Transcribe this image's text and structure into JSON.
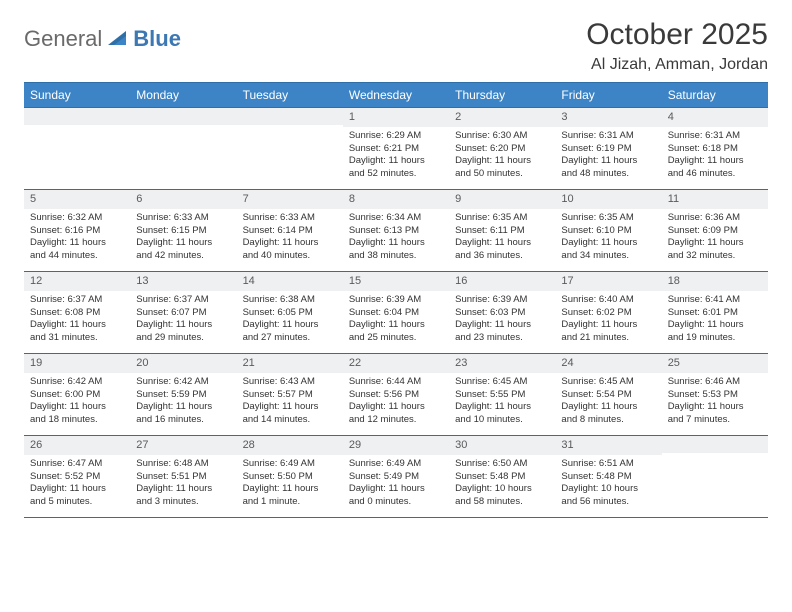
{
  "brand": {
    "part1": "General",
    "part2": "Blue"
  },
  "title": "October 2025",
  "location": "Al Jizah, Amman, Jordan",
  "colors": {
    "header_bg": "#3c84c6",
    "header_text": "#ffffff",
    "border": "#2f6fa8",
    "daynum_bg": "#eef0f2",
    "text": "#333333",
    "logo_gray": "#6a6a6a",
    "logo_blue": "#3d78b4"
  },
  "weekdays": [
    "Sunday",
    "Monday",
    "Tuesday",
    "Wednesday",
    "Thursday",
    "Friday",
    "Saturday"
  ],
  "layout": {
    "leading_blanks": 3,
    "trailing_blanks": 1,
    "weeks": 5
  },
  "days": [
    {
      "n": "1",
      "sr": "Sunrise: 6:29 AM",
      "ss": "Sunset: 6:21 PM",
      "dl": "Daylight: 11 hours and 52 minutes."
    },
    {
      "n": "2",
      "sr": "Sunrise: 6:30 AM",
      "ss": "Sunset: 6:20 PM",
      "dl": "Daylight: 11 hours and 50 minutes."
    },
    {
      "n": "3",
      "sr": "Sunrise: 6:31 AM",
      "ss": "Sunset: 6:19 PM",
      "dl": "Daylight: 11 hours and 48 minutes."
    },
    {
      "n": "4",
      "sr": "Sunrise: 6:31 AM",
      "ss": "Sunset: 6:18 PM",
      "dl": "Daylight: 11 hours and 46 minutes."
    },
    {
      "n": "5",
      "sr": "Sunrise: 6:32 AM",
      "ss": "Sunset: 6:16 PM",
      "dl": "Daylight: 11 hours and 44 minutes."
    },
    {
      "n": "6",
      "sr": "Sunrise: 6:33 AM",
      "ss": "Sunset: 6:15 PM",
      "dl": "Daylight: 11 hours and 42 minutes."
    },
    {
      "n": "7",
      "sr": "Sunrise: 6:33 AM",
      "ss": "Sunset: 6:14 PM",
      "dl": "Daylight: 11 hours and 40 minutes."
    },
    {
      "n": "8",
      "sr": "Sunrise: 6:34 AM",
      "ss": "Sunset: 6:13 PM",
      "dl": "Daylight: 11 hours and 38 minutes."
    },
    {
      "n": "9",
      "sr": "Sunrise: 6:35 AM",
      "ss": "Sunset: 6:11 PM",
      "dl": "Daylight: 11 hours and 36 minutes."
    },
    {
      "n": "10",
      "sr": "Sunrise: 6:35 AM",
      "ss": "Sunset: 6:10 PM",
      "dl": "Daylight: 11 hours and 34 minutes."
    },
    {
      "n": "11",
      "sr": "Sunrise: 6:36 AM",
      "ss": "Sunset: 6:09 PM",
      "dl": "Daylight: 11 hours and 32 minutes."
    },
    {
      "n": "12",
      "sr": "Sunrise: 6:37 AM",
      "ss": "Sunset: 6:08 PM",
      "dl": "Daylight: 11 hours and 31 minutes."
    },
    {
      "n": "13",
      "sr": "Sunrise: 6:37 AM",
      "ss": "Sunset: 6:07 PM",
      "dl": "Daylight: 11 hours and 29 minutes."
    },
    {
      "n": "14",
      "sr": "Sunrise: 6:38 AM",
      "ss": "Sunset: 6:05 PM",
      "dl": "Daylight: 11 hours and 27 minutes."
    },
    {
      "n": "15",
      "sr": "Sunrise: 6:39 AM",
      "ss": "Sunset: 6:04 PM",
      "dl": "Daylight: 11 hours and 25 minutes."
    },
    {
      "n": "16",
      "sr": "Sunrise: 6:39 AM",
      "ss": "Sunset: 6:03 PM",
      "dl": "Daylight: 11 hours and 23 minutes."
    },
    {
      "n": "17",
      "sr": "Sunrise: 6:40 AM",
      "ss": "Sunset: 6:02 PM",
      "dl": "Daylight: 11 hours and 21 minutes."
    },
    {
      "n": "18",
      "sr": "Sunrise: 6:41 AM",
      "ss": "Sunset: 6:01 PM",
      "dl": "Daylight: 11 hours and 19 minutes."
    },
    {
      "n": "19",
      "sr": "Sunrise: 6:42 AM",
      "ss": "Sunset: 6:00 PM",
      "dl": "Daylight: 11 hours and 18 minutes."
    },
    {
      "n": "20",
      "sr": "Sunrise: 6:42 AM",
      "ss": "Sunset: 5:59 PM",
      "dl": "Daylight: 11 hours and 16 minutes."
    },
    {
      "n": "21",
      "sr": "Sunrise: 6:43 AM",
      "ss": "Sunset: 5:57 PM",
      "dl": "Daylight: 11 hours and 14 minutes."
    },
    {
      "n": "22",
      "sr": "Sunrise: 6:44 AM",
      "ss": "Sunset: 5:56 PM",
      "dl": "Daylight: 11 hours and 12 minutes."
    },
    {
      "n": "23",
      "sr": "Sunrise: 6:45 AM",
      "ss": "Sunset: 5:55 PM",
      "dl": "Daylight: 11 hours and 10 minutes."
    },
    {
      "n": "24",
      "sr": "Sunrise: 6:45 AM",
      "ss": "Sunset: 5:54 PM",
      "dl": "Daylight: 11 hours and 8 minutes."
    },
    {
      "n": "25",
      "sr": "Sunrise: 6:46 AM",
      "ss": "Sunset: 5:53 PM",
      "dl": "Daylight: 11 hours and 7 minutes."
    },
    {
      "n": "26",
      "sr": "Sunrise: 6:47 AM",
      "ss": "Sunset: 5:52 PM",
      "dl": "Daylight: 11 hours and 5 minutes."
    },
    {
      "n": "27",
      "sr": "Sunrise: 6:48 AM",
      "ss": "Sunset: 5:51 PM",
      "dl": "Daylight: 11 hours and 3 minutes."
    },
    {
      "n": "28",
      "sr": "Sunrise: 6:49 AM",
      "ss": "Sunset: 5:50 PM",
      "dl": "Daylight: 11 hours and 1 minute."
    },
    {
      "n": "29",
      "sr": "Sunrise: 6:49 AM",
      "ss": "Sunset: 5:49 PM",
      "dl": "Daylight: 11 hours and 0 minutes."
    },
    {
      "n": "30",
      "sr": "Sunrise: 6:50 AM",
      "ss": "Sunset: 5:48 PM",
      "dl": "Daylight: 10 hours and 58 minutes."
    },
    {
      "n": "31",
      "sr": "Sunrise: 6:51 AM",
      "ss": "Sunset: 5:48 PM",
      "dl": "Daylight: 10 hours and 56 minutes."
    }
  ]
}
